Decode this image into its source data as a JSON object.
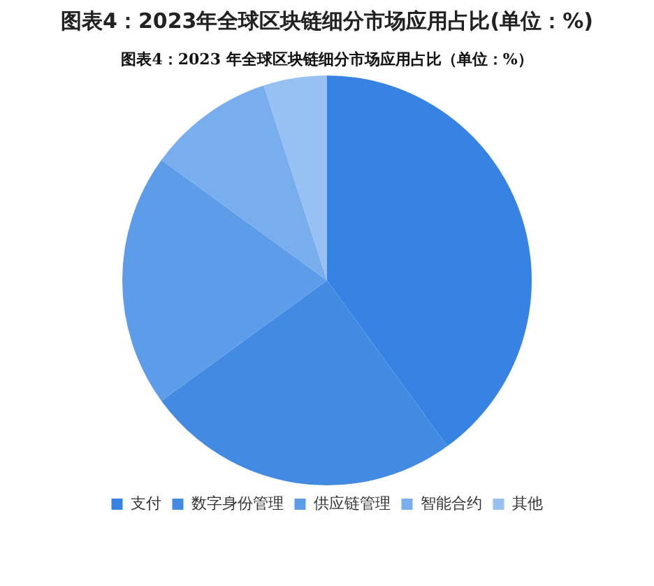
{
  "chart_data": {
    "type": "pie",
    "title": "图表4：2023年全球区块链细分市场应用占比(单位：%)",
    "subtitle": "图表4：2023 年全球区块链细分市场应用占比（单位：%）",
    "categories": [
      "支付",
      "数字身份管理",
      "供应链管理",
      "智能合约",
      "其他"
    ],
    "values": [
      40,
      25,
      20,
      10,
      5
    ],
    "colors": [
      "#3783e3",
      "#428ae2",
      "#5c9ce8",
      "#78aeee",
      "#97c1f2"
    ],
    "legend": "bottom"
  }
}
